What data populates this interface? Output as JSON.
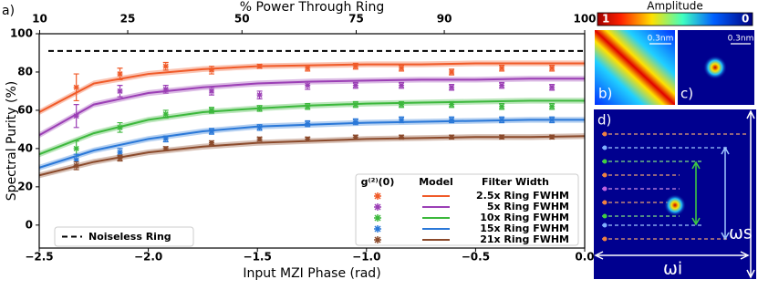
{
  "panel_label": "a)",
  "chart_data": {
    "type": "scatter",
    "top_axis_label": "% Power Through Ring",
    "x_label": "Input MZI Phase (rad)",
    "y_label": "Spectral Purity (%)",
    "xlim": [
      -2.5,
      0.0
    ],
    "ylim": [
      -12,
      100
    ],
    "xticks": [
      {
        "value": -2.5,
        "label": "−2.5"
      },
      {
        "value": -2.0,
        "label": "−2.0"
      },
      {
        "value": -1.5,
        "label": "−1.5"
      },
      {
        "value": -1.0,
        "label": "−1.0"
      },
      {
        "value": -0.5,
        "label": "−0.5"
      },
      {
        "value": 0.0,
        "label": "0.0"
      }
    ],
    "yticks": [
      0,
      20,
      40,
      60,
      80,
      100
    ],
    "x2ticks": [
      10,
      25,
      50,
      75,
      90,
      100
    ],
    "x": [
      -2.33,
      -2.13,
      -1.92,
      -1.71,
      -1.49,
      -1.27,
      -1.05,
      -0.84,
      -0.61,
      -0.38,
      -0.15
    ],
    "model_x": [
      -2.5,
      -2.25,
      -2.0,
      -1.75,
      -1.5,
      -1.25,
      -1.0,
      -0.75,
      -0.5,
      -0.25,
      0.0
    ],
    "model_band": 1.5,
    "legend_headers": [
      "g⁽²⁾(0)",
      "Model",
      "Filter Width"
    ],
    "series": [
      {
        "name": "2.5x Ring FWHM",
        "color": "#f05a28",
        "values": [
          72,
          79,
          83,
          81,
          83,
          82,
          83,
          82,
          80,
          82,
          82
        ],
        "yerr": [
          7,
          3,
          2,
          2,
          1,
          1.5,
          1.5,
          1.5,
          1.5,
          1.5,
          1.5
        ],
        "model": [
          59,
          74,
          79,
          81.5,
          83,
          83.5,
          84,
          84,
          84.5,
          84.5,
          84.5
        ]
      },
      {
        "name": "5x Ring FWHM",
        "color": "#9b3fb5",
        "values": [
          57,
          70,
          71,
          70,
          68,
          73,
          73,
          73,
          72,
          73,
          72
        ],
        "yerr": [
          6,
          3,
          2,
          2,
          2,
          2,
          1.5,
          1.5,
          1.5,
          1.5,
          1.5
        ],
        "model": [
          47,
          63,
          69,
          72,
          74,
          75,
          75.5,
          76,
          76,
          76.5,
          76.5
        ]
      },
      {
        "name": "10x Ring FWHM",
        "color": "#3cb83c",
        "values": [
          40,
          51,
          58,
          60,
          61,
          62,
          63,
          63,
          63,
          62,
          62
        ],
        "yerr": [
          4,
          2.5,
          2,
          1.5,
          1.5,
          1.5,
          1.5,
          1.5,
          1.5,
          1.5,
          1.5
        ],
        "model": [
          37,
          48,
          55,
          59,
          61,
          62.5,
          63.5,
          64,
          64.5,
          65,
          65
        ]
      },
      {
        "name": "15x Ring FWHM",
        "color": "#2a78d8",
        "values": [
          34,
          38,
          45,
          49,
          51,
          53,
          54,
          55,
          55,
          55,
          55
        ],
        "yerr": [
          3,
          2,
          1.5,
          1.5,
          1.5,
          1.5,
          1.5,
          1.5,
          1.5,
          1.5,
          1.5
        ],
        "model": [
          30,
          39,
          45,
          49,
          51.5,
          52.5,
          53.5,
          54,
          54.5,
          55,
          55
        ]
      },
      {
        "name": "21x Ring FWHM",
        "color": "#8b4a2b",
        "values": [
          31,
          35,
          40,
          43,
          45,
          45,
          46,
          46,
          46,
          46,
          46
        ],
        "yerr": [
          2,
          1.5,
          1,
          1,
          1,
          1,
          1,
          1,
          1,
          1,
          1
        ],
        "model": [
          26,
          33,
          38,
          41,
          43,
          44,
          45,
          45.5,
          46,
          46,
          46.5
        ]
      }
    ],
    "reference": {
      "name": "Noiseless Ring",
      "value": 91,
      "color": "#000000"
    }
  },
  "insets": {
    "colorbar": {
      "title": "Amplitude",
      "ticks": [
        1,
        0
      ]
    },
    "panels": [
      {
        "label": "b)",
        "scale": "0.3nm"
      },
      {
        "label": "c)",
        "scale": "0.3nm"
      },
      {
        "label": "d)",
        "omega_s": "ωs",
        "omega_i": "ωi"
      }
    ]
  }
}
